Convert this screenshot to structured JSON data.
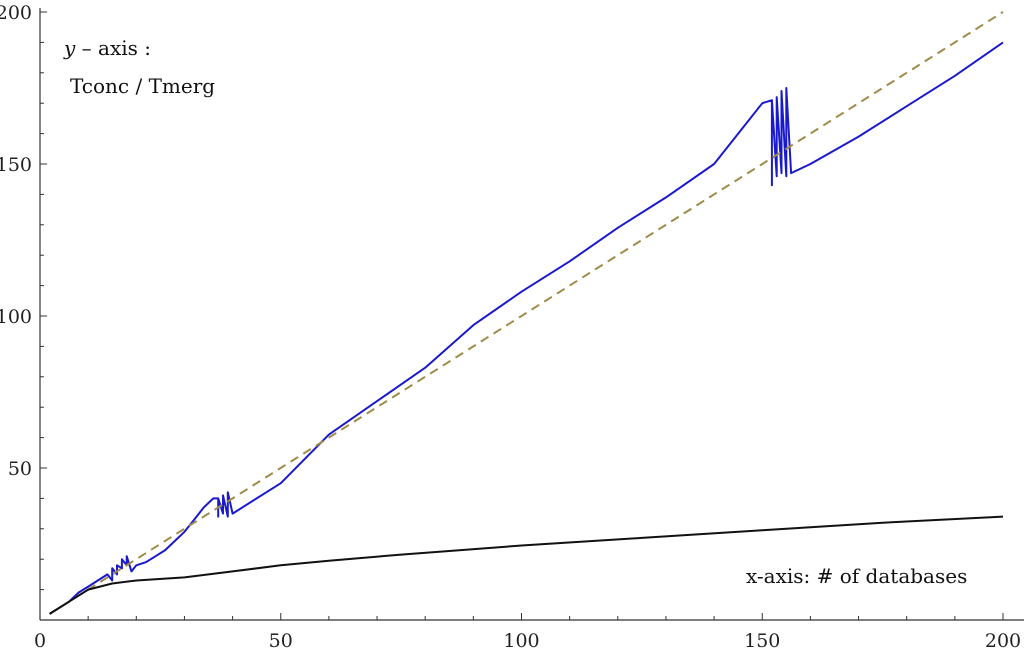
{
  "chart_data": {
    "type": "line",
    "title": "",
    "xlabel": "",
    "ylabel": "",
    "xlim": [
      0,
      205
    ],
    "ylim": [
      0,
      200
    ],
    "x_ticks": [
      0,
      50,
      100,
      150,
      200
    ],
    "y_ticks": [
      50,
      100,
      150,
      200
    ],
    "x_tick_labels": [
      "0",
      "50",
      "100",
      "150",
      "200"
    ],
    "y_tick_labels": [
      "50",
      "100",
      "150",
      "200"
    ],
    "grid": false,
    "annotations": {
      "y_axis_line1_var": "y",
      "y_axis_line1_rest": " – axis :",
      "y_axis_line2": "Tconc / Tmerg",
      "x_axis_note": "x-axis: #  of databases"
    },
    "series": [
      {
        "color": "#1a1acc",
        "style": "solid",
        "points": [
          [
            2,
            2
          ],
          [
            4,
            4
          ],
          [
            6,
            6
          ],
          [
            8,
            9
          ],
          [
            10,
            11
          ],
          [
            12,
            13
          ],
          [
            14,
            15
          ],
          [
            15,
            13
          ],
          [
            15,
            17
          ],
          [
            16,
            15
          ],
          [
            16,
            18
          ],
          [
            17,
            17
          ],
          [
            17,
            20
          ],
          [
            18,
            18
          ],
          [
            18,
            21
          ],
          [
            19,
            16
          ],
          [
            20,
            18
          ],
          [
            22,
            19
          ],
          [
            24,
            21
          ],
          [
            26,
            23
          ],
          [
            28,
            26
          ],
          [
            30,
            29
          ],
          [
            32,
            33
          ],
          [
            34,
            37
          ],
          [
            36,
            40
          ],
          [
            37,
            40
          ],
          [
            37,
            34
          ],
          [
            37,
            40
          ],
          [
            38,
            35
          ],
          [
            38,
            41
          ],
          [
            39,
            34
          ],
          [
            39,
            42
          ],
          [
            40,
            35
          ],
          [
            50,
            45
          ],
          [
            60,
            61
          ],
          [
            70,
            72
          ],
          [
            80,
            83
          ],
          [
            90,
            97
          ],
          [
            100,
            108
          ],
          [
            110,
            118
          ],
          [
            120,
            129
          ],
          [
            130,
            139
          ],
          [
            140,
            150
          ],
          [
            150,
            170
          ],
          [
            152,
            171
          ],
          [
            152,
            143
          ],
          [
            152,
            171
          ],
          [
            153,
            146
          ],
          [
            153,
            172
          ],
          [
            154,
            147
          ],
          [
            154,
            174
          ],
          [
            155,
            146
          ],
          [
            155,
            175
          ],
          [
            156,
            147
          ],
          [
            160,
            150
          ],
          [
            170,
            159
          ],
          [
            180,
            169
          ],
          [
            190,
            179
          ],
          [
            200,
            190
          ]
        ]
      },
      {
        "color": "#a08b4a",
        "style": "dashed",
        "points": [
          [
            2,
            2
          ],
          [
            200,
            200
          ]
        ]
      },
      {
        "color": "#111111",
        "style": "solid",
        "points": [
          [
            2,
            2
          ],
          [
            5,
            5
          ],
          [
            8,
            8
          ],
          [
            10,
            10
          ],
          [
            15,
            12
          ],
          [
            20,
            13
          ],
          [
            30,
            14
          ],
          [
            40,
            16
          ],
          [
            50,
            18
          ],
          [
            60,
            19.5
          ],
          [
            75,
            21.5
          ],
          [
            100,
            24.5
          ],
          [
            125,
            27
          ],
          [
            150,
            29.5
          ],
          [
            175,
            32
          ],
          [
            200,
            34
          ]
        ]
      }
    ]
  }
}
